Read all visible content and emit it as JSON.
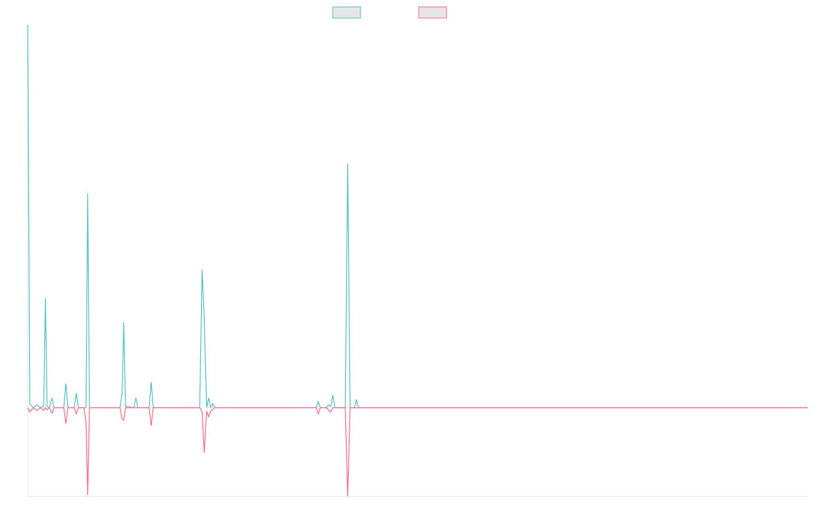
{
  "chart_data": {
    "type": "line",
    "x": [
      0,
      3,
      8,
      13,
      18,
      23,
      25.5,
      28,
      31,
      35,
      38,
      52,
      55,
      58,
      67,
      70,
      73,
      81,
      84,
      86.5,
      89,
      133,
      136,
      138.5,
      141,
      153,
      156,
      159,
      175,
      178,
      181,
      248,
      251.5,
      254.5,
      258,
      261,
      264,
      267,
      270,
      416,
      419,
      422,
      431,
      434,
      437,
      440,
      443,
      458,
      461.5,
      465,
      471,
      474,
      477,
      597,
      1125
    ],
    "series": [
      {
        "color": "#4bc0c0",
        "values": [
          552,
          5,
          0,
          4,
          0,
          2,
          158,
          2,
          0,
          14,
          0,
          0,
          35,
          0,
          0,
          21,
          0,
          0,
          0,
          309,
          0,
          0,
          20,
          123,
          2,
          0,
          14,
          0,
          0,
          37,
          0,
          0,
          199,
          130,
          0,
          14,
          0,
          6,
          0,
          0,
          9,
          0,
          0,
          4,
          2,
          18,
          0,
          0,
          352,
          0,
          0,
          11,
          0,
          0,
          0
        ]
      },
      {
        "color": "#ff6384",
        "values": [
          0,
          -6,
          0,
          -4,
          0,
          -4,
          0,
          -3,
          0,
          -8,
          0,
          0,
          -23,
          0,
          0,
          -9,
          0,
          0,
          -20,
          -126,
          0,
          0,
          -16,
          -18,
          0,
          0,
          0,
          0,
          0,
          -26,
          0,
          0,
          -6,
          -65,
          -5,
          -13,
          -5,
          -2,
          0,
          0,
          -9,
          0,
          0,
          -4,
          -6,
          0,
          0,
          0,
          -128,
          0,
          0,
          0,
          0,
          0,
          0
        ]
      }
    ],
    "xlim": [
      0,
      1125
    ],
    "ylim": [
      -128,
      552
    ]
  }
}
